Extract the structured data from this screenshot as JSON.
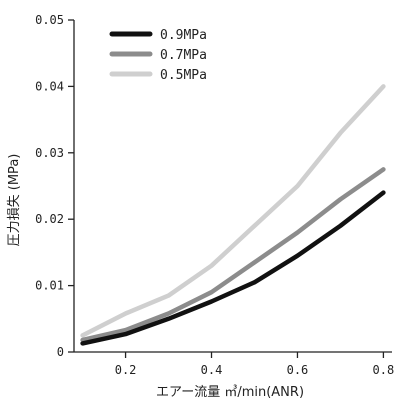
{
  "chart_data": {
    "type": "line",
    "xlabel": "エアー流量 ㎥/min(ANR)",
    "ylabel": "圧力損失 (MPa)",
    "xlim": [
      0.08,
      0.82
    ],
    "ylim": [
      0,
      0.05
    ],
    "x_ticks": [
      "0.2",
      "0.4",
      "0.6",
      "0.8"
    ],
    "x_tick_values": [
      0.2,
      0.4,
      0.6,
      0.8
    ],
    "y_ticks": [
      "0",
      "0.01",
      "0.02",
      "0.03",
      "0.04",
      "0.05"
    ],
    "y_tick_values": [
      0,
      0.01,
      0.02,
      0.03,
      0.04,
      0.05
    ],
    "legend_position": "top-left",
    "grid": false,
    "series": [
      {
        "name": "0.9MPa",
        "color": "#111111",
        "points": [
          [
            0.1,
            0.0013
          ],
          [
            0.2,
            0.0027
          ],
          [
            0.3,
            0.005
          ],
          [
            0.4,
            0.0076
          ],
          [
            0.5,
            0.0105
          ],
          [
            0.6,
            0.0145
          ],
          [
            0.7,
            0.019
          ],
          [
            0.8,
            0.024
          ]
        ]
      },
      {
        "name": "0.7MPa",
        "color": "#8c8c8c",
        "points": [
          [
            0.1,
            0.0018
          ],
          [
            0.2,
            0.0033
          ],
          [
            0.3,
            0.0058
          ],
          [
            0.4,
            0.009
          ],
          [
            0.5,
            0.0135
          ],
          [
            0.6,
            0.018
          ],
          [
            0.7,
            0.023
          ],
          [
            0.8,
            0.0275
          ]
        ]
      },
      {
        "name": "0.5MPa",
        "color": "#cfcfcf",
        "points": [
          [
            0.1,
            0.0025
          ],
          [
            0.2,
            0.0058
          ],
          [
            0.3,
            0.0085
          ],
          [
            0.4,
            0.013
          ],
          [
            0.5,
            0.019
          ],
          [
            0.6,
            0.025
          ],
          [
            0.7,
            0.033
          ],
          [
            0.8,
            0.04
          ]
        ]
      }
    ]
  }
}
